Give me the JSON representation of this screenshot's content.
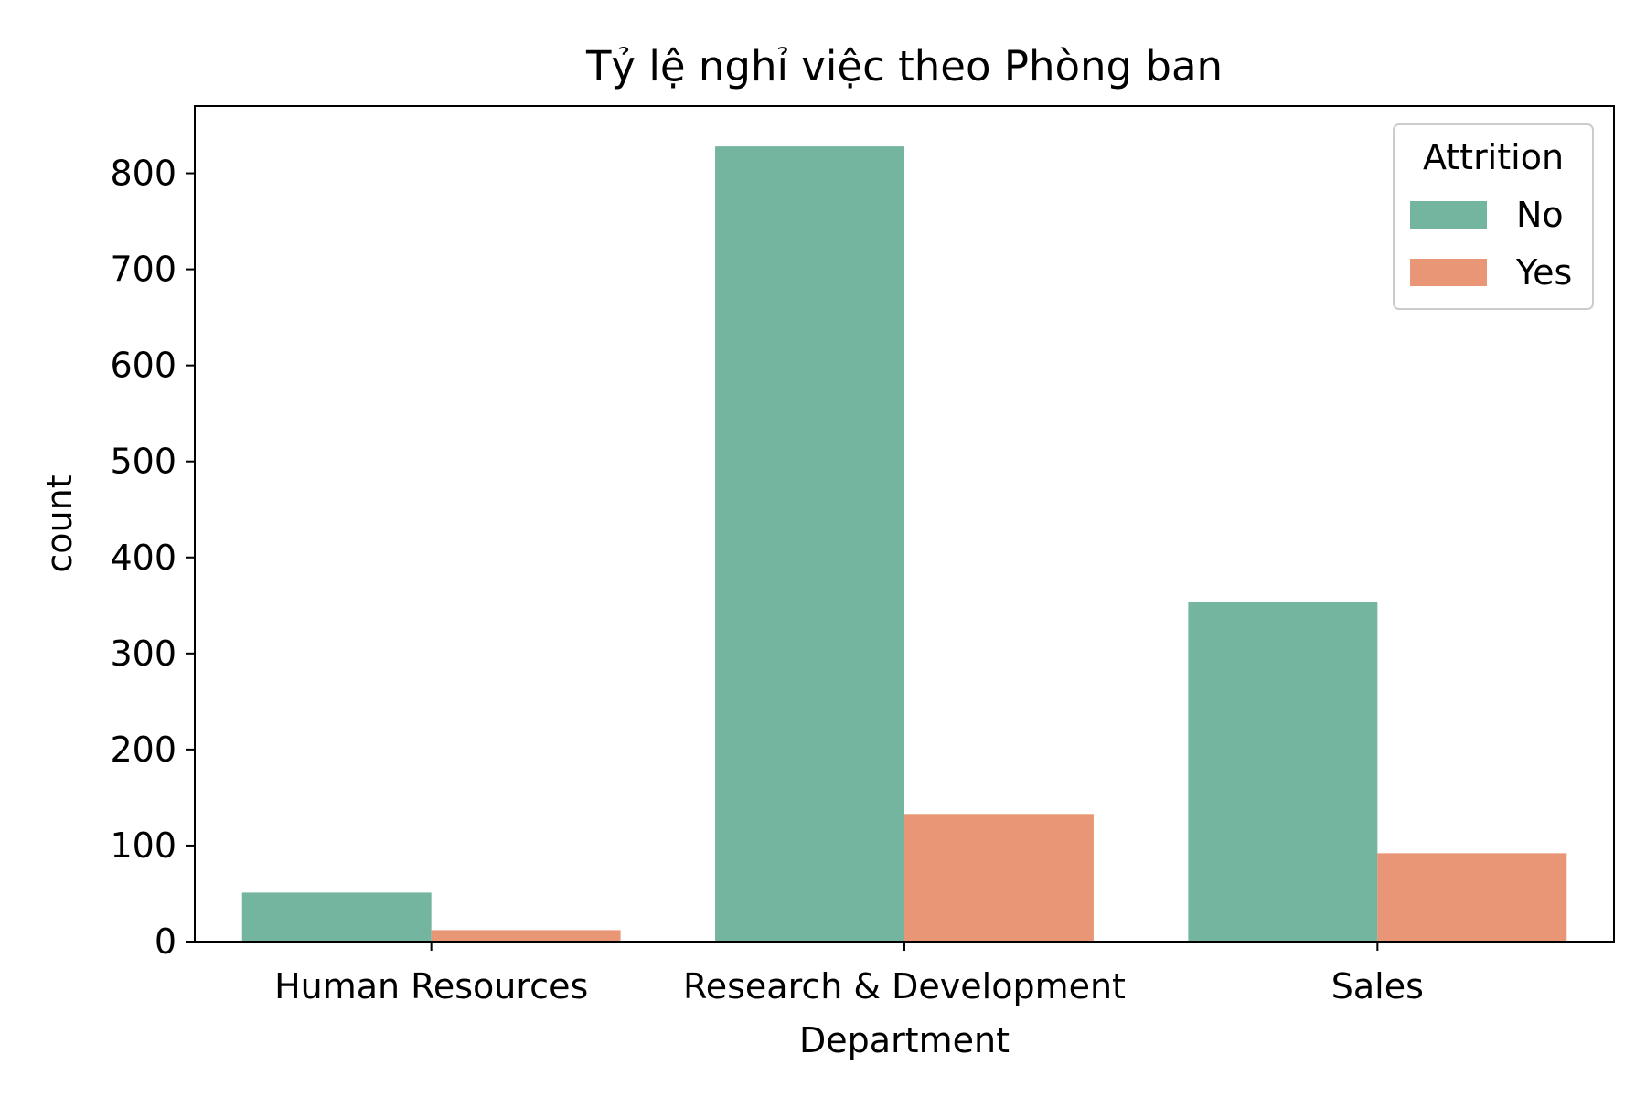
{
  "chart_data": {
    "type": "bar",
    "title": "Tỷ lệ nghỉ việc theo Phòng ban",
    "xlabel": "Department",
    "ylabel": "count",
    "categories": [
      "Human Resources",
      "Research & Development",
      "Sales"
    ],
    "series": [
      {
        "name": "No",
        "values": [
          51,
          828,
          354
        ],
        "color": "#73b59f"
      },
      {
        "name": "Yes",
        "values": [
          12,
          133,
          92
        ],
        "color": "#e99676"
      }
    ],
    "ylim": [
      0,
      870
    ],
    "yticks": [
      0,
      100,
      200,
      300,
      400,
      500,
      600,
      700,
      800
    ],
    "grid": false,
    "legend": {
      "title": "Attrition",
      "placement": "top-right"
    }
  }
}
